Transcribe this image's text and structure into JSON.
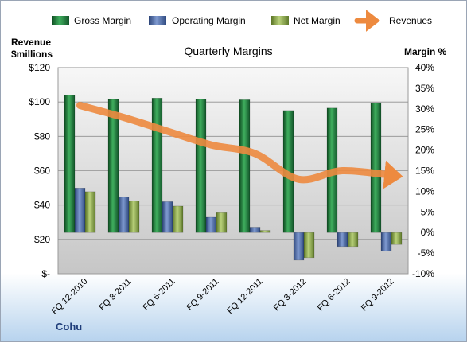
{
  "chart_data": {
    "type": "bar",
    "title": "Quarterly Margins",
    "company": "Cohu",
    "left_axis_label": [
      "Revenue",
      "$millions"
    ],
    "right_axis_label": "Margin %",
    "left_ticks": [
      "$120",
      "$100",
      "$80",
      "$60",
      "$40",
      "$20",
      "$-"
    ],
    "right_ticks": [
      "40%",
      "35%",
      "30%",
      "25%",
      "20%",
      "15%",
      "10%",
      "5%",
      "0%",
      "-5%",
      "-10%"
    ],
    "left_ylim": [
      0,
      120
    ],
    "right_ylim": [
      -10,
      40
    ],
    "legend_position": "top",
    "grid": true,
    "categories": [
      "FQ 12-2010",
      "FQ 3-2011",
      "FQ 6-2011",
      "FQ 9-2011",
      "FQ 12-2011",
      "FQ 3-2012",
      "FQ 6-2012",
      "FQ 9-2012"
    ],
    "series": [
      {
        "name": "Gross Margin",
        "axis": "right",
        "color": "#1f7a3a",
        "values": [
          33.3,
          32.3,
          32.6,
          32.4,
          32.2,
          29.6,
          30.2,
          31.5
        ]
      },
      {
        "name": "Operating Margin",
        "axis": "right",
        "color": "#4f6fae",
        "values": [
          10.8,
          8.6,
          7.5,
          3.7,
          1.3,
          -6.7,
          -3.4,
          -4.5
        ]
      },
      {
        "name": "Net Margin",
        "axis": "right",
        "color": "#8aa64a",
        "values": [
          9.9,
          7.7,
          6.4,
          4.8,
          0.5,
          -6.1,
          -3.4,
          -2.9
        ]
      },
      {
        "name": "Revenues",
        "axis": "left",
        "color": "#ed8a3f",
        "type": "line",
        "values": [
          98,
          91,
          83,
          75,
          70,
          55,
          60,
          57
        ]
      }
    ]
  }
}
